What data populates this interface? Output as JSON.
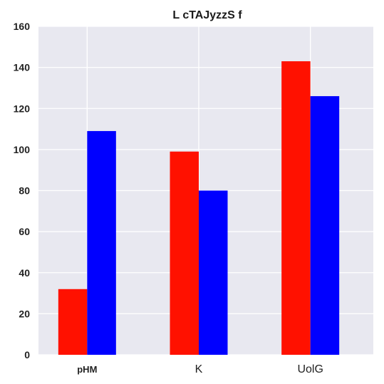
{
  "chart_data": {
    "type": "bar",
    "title": "L cTAJyzzS  f",
    "xlabel": "",
    "ylabel": "",
    "categories": [
      "pHM",
      "K",
      "UolG"
    ],
    "category_bold": [
      true,
      false,
      false
    ],
    "series": [
      {
        "color": "#ff1100",
        "values": [
          32,
          99,
          143
        ]
      },
      {
        "color": "#0000ff",
        "values": [
          109,
          80,
          126
        ]
      }
    ],
    "ylim": [
      0,
      160
    ],
    "yticks": [
      0,
      20,
      40,
      60,
      80,
      100,
      120,
      140,
      160
    ],
    "grid": true,
    "background": "#e8e8f0",
    "grid_color": "#ffffff"
  }
}
